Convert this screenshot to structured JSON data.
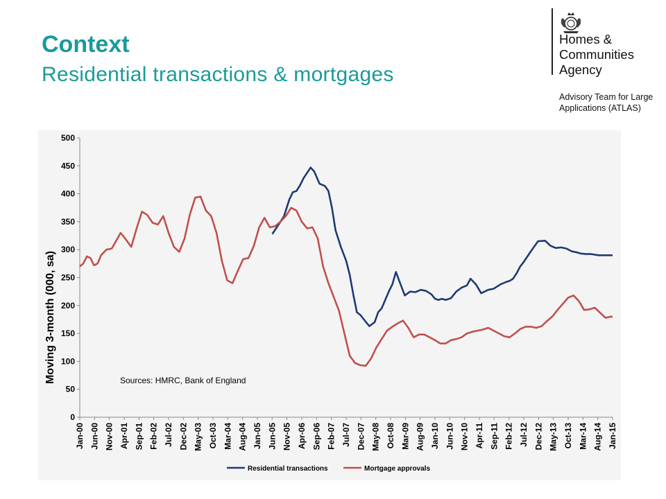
{
  "slide": {
    "title": "Context",
    "subtitle": "Residential transactions & mortgages"
  },
  "logo": {
    "org_lines": [
      "Homes &",
      "Communities",
      "Agency"
    ],
    "team_lines": [
      "Advisory Team for Large",
      "Applications (ATLAS)"
    ],
    "icon": "royal-crest-icon"
  },
  "chart_data": {
    "type": "line",
    "ylabel": "Moving 3-month (000, sa)",
    "xlabel": "",
    "ylim": [
      0,
      500
    ],
    "yticks": [
      0,
      50,
      100,
      150,
      200,
      250,
      300,
      350,
      400,
      450,
      500
    ],
    "xlim": [
      2000.0,
      2015.0
    ],
    "xtick_labels": [
      "Jan-00",
      "Jun-00",
      "Nov-00",
      "Apr-01",
      "Sep-01",
      "Feb-02",
      "Jul-02",
      "Dec-02",
      "May-03",
      "Oct-03",
      "Mar-04",
      "Aug-04",
      "Jan-05",
      "Jun-05",
      "Nov-05",
      "Apr-06",
      "Sep-06",
      "Feb-07",
      "Jul-07",
      "Dec-07",
      "May-08",
      "Oct-08",
      "Mar-09",
      "Aug-09",
      "Jan-10",
      "Jun-10",
      "Nov-10",
      "Apr-11",
      "Sep-11",
      "Feb-12",
      "Jul-12",
      "Dec-12",
      "May-13",
      "Oct-13",
      "Mar-14",
      "Aug-14",
      "Jan-15"
    ],
    "grid": false,
    "legend_position": "bottom",
    "annotation": "Sources: HMRC, Bank of England",
    "series": [
      {
        "name": "Residential transactions",
        "color": "#1f3a73",
        "x": [
          2005.42,
          2005.6,
          2005.75,
          2005.9,
          2006.0,
          2006.1,
          2006.2,
          2006.3,
          2006.5,
          2006.6,
          2006.75,
          2006.9,
          2007.0,
          2007.1,
          2007.2,
          2007.35,
          2007.5,
          2007.6,
          2007.7,
          2007.8,
          2007.9,
          2008.0,
          2008.15,
          2008.3,
          2008.4,
          2008.5,
          2008.6,
          2008.7,
          2008.8,
          2008.9,
          2009.0,
          2009.15,
          2009.3,
          2009.45,
          2009.6,
          2009.75,
          2009.9,
          2010.0,
          2010.1,
          2010.2,
          2010.3,
          2010.45,
          2010.6,
          2010.75,
          2010.9,
          2011.0,
          2011.15,
          2011.3,
          2011.5,
          2011.65,
          2011.85,
          2012.0,
          2012.1,
          2012.2,
          2012.3,
          2012.4,
          2012.5,
          2012.7,
          2012.9,
          2013.1,
          2013.25,
          2013.4,
          2013.55,
          2013.7,
          2013.85,
          2014.0,
          2014.1,
          2014.25,
          2014.4,
          2014.6,
          2014.75,
          2014.9,
          2015.0
        ],
        "values": [
          328,
          345,
          360,
          390,
          403,
          405,
          415,
          428,
          447,
          440,
          418,
          414,
          405,
          375,
          335,
          305,
          280,
          255,
          220,
          188,
          183,
          175,
          163,
          170,
          188,
          195,
          210,
          225,
          238,
          260,
          243,
          218,
          225,
          224,
          228,
          226,
          220,
          212,
          210,
          212,
          210,
          213,
          225,
          232,
          236,
          248,
          238,
          222,
          228,
          230,
          238,
          242,
          244,
          248,
          258,
          270,
          278,
          297,
          315,
          316,
          307,
          303,
          304,
          302,
          297,
          295,
          293,
          292,
          292,
          290,
          290,
          290,
          290
        ]
      },
      {
        "name": "Mortgage approvals",
        "color": "#c0504d",
        "x": [
          2000.0,
          2000.1,
          2000.2,
          2000.3,
          2000.4,
          2000.5,
          2000.6,
          2000.75,
          2000.9,
          2001.0,
          2001.15,
          2001.3,
          2001.45,
          2001.6,
          2001.75,
          2001.9,
          2002.05,
          2002.2,
          2002.35,
          2002.5,
          2002.65,
          2002.8,
          2002.95,
          2003.1,
          2003.25,
          2003.4,
          2003.55,
          2003.7,
          2003.85,
          2004.0,
          2004.15,
          2004.3,
          2004.45,
          2004.6,
          2004.75,
          2004.9,
          2005.05,
          2005.2,
          2005.35,
          2005.5,
          2005.65,
          2005.8,
          2005.95,
          2006.1,
          2006.25,
          2006.4,
          2006.55,
          2006.7,
          2006.85,
          2007.0,
          2007.15,
          2007.3,
          2007.45,
          2007.6,
          2007.75,
          2007.9,
          2008.05,
          2008.2,
          2008.35,
          2008.5,
          2008.65,
          2008.8,
          2008.95,
          2009.1,
          2009.25,
          2009.4,
          2009.55,
          2009.7,
          2009.85,
          2010.0,
          2010.15,
          2010.3,
          2010.45,
          2010.6,
          2010.75,
          2010.9,
          2011.05,
          2011.2,
          2011.35,
          2011.5,
          2011.65,
          2011.8,
          2011.95,
          2012.1,
          2012.25,
          2012.4,
          2012.55,
          2012.7,
          2012.85,
          2013.0,
          2013.15,
          2013.3,
          2013.45,
          2013.6,
          2013.75,
          2013.9,
          2014.05,
          2014.2,
          2014.35,
          2014.5,
          2014.65,
          2014.8,
          2014.95,
          2015.0
        ],
        "values": [
          270,
          275,
          288,
          285,
          272,
          275,
          290,
          300,
          302,
          313,
          330,
          318,
          305,
          338,
          368,
          362,
          348,
          345,
          360,
          330,
          305,
          296,
          320,
          363,
          393,
          395,
          370,
          360,
          330,
          280,
          245,
          240,
          262,
          283,
          285,
          307,
          340,
          357,
          340,
          342,
          350,
          360,
          375,
          370,
          350,
          338,
          340,
          320,
          270,
          240,
          215,
          190,
          150,
          110,
          97,
          93,
          92,
          105,
          125,
          140,
          155,
          162,
          168,
          173,
          160,
          143,
          148,
          148,
          143,
          138,
          132,
          132,
          138,
          140,
          143,
          150,
          153,
          155,
          157,
          160,
          155,
          150,
          145,
          143,
          150,
          158,
          162,
          162,
          160,
          163,
          172,
          180,
          192,
          203,
          214,
          218,
          208,
          192,
          193,
          196,
          187,
          178,
          180,
          180
        ]
      }
    ]
  }
}
